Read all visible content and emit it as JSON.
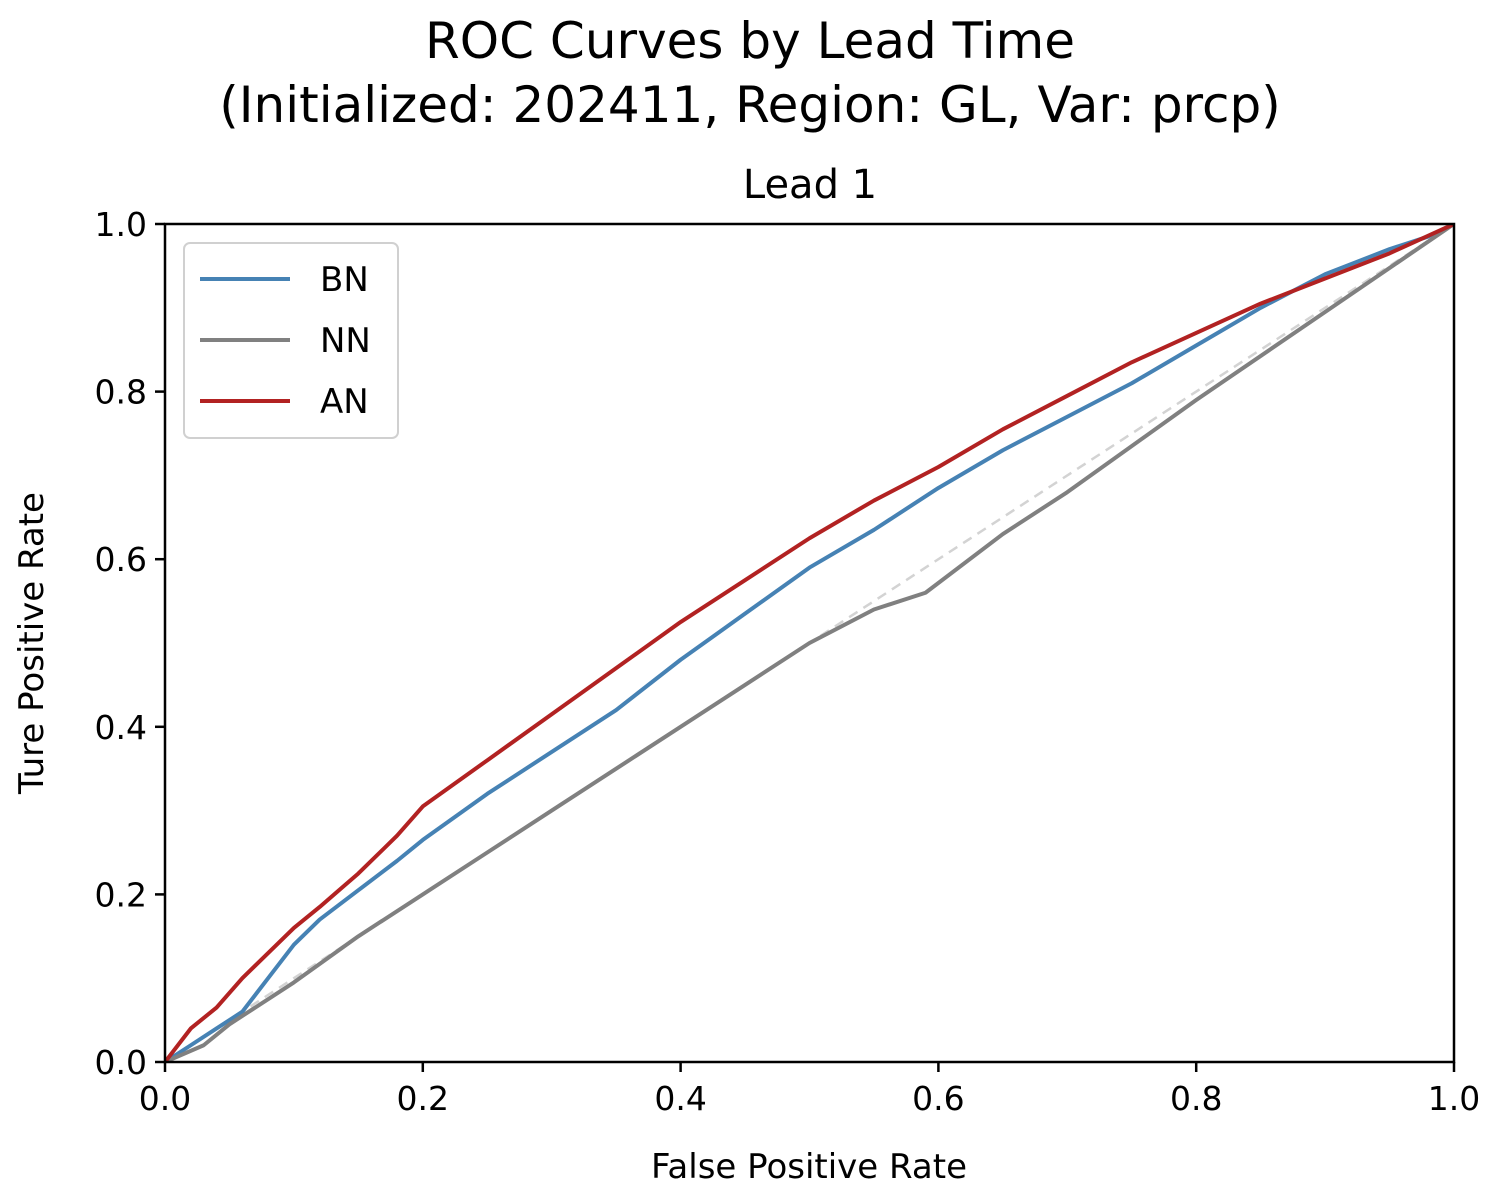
{
  "chart_data": {
    "type": "line",
    "title_lines": [
      "ROC Curves by Lead Time",
      "(Initialized: 202411, Region: GL, Var: prcp)"
    ],
    "subtitle": "Lead 1",
    "xlabel": "False Positive Rate",
    "ylabel": "Ture Positive Rate",
    "xlim": [
      0,
      1
    ],
    "ylim": [
      0,
      1
    ],
    "x_ticks": [
      "0.0",
      "0.2",
      "0.4",
      "0.6",
      "0.8",
      "1.0"
    ],
    "y_ticks": [
      "0.0",
      "0.2",
      "0.4",
      "0.6",
      "0.8",
      "1.0"
    ],
    "grid": false,
    "legend_position": "upper-left",
    "reference_line": {
      "style": "dashed",
      "color": "#d3d3d3",
      "x": [
        0,
        1
      ],
      "y": [
        0,
        1
      ]
    },
    "series": [
      {
        "name": "BN",
        "color": "#4682b4",
        "x": [
          0,
          0.02,
          0.04,
          0.06,
          0.08,
          0.1,
          0.12,
          0.15,
          0.18,
          0.2,
          0.25,
          0.3,
          0.35,
          0.4,
          0.45,
          0.5,
          0.55,
          0.6,
          0.65,
          0.7,
          0.75,
          0.8,
          0.85,
          0.9,
          0.95,
          0.98,
          1.0
        ],
        "y": [
          0,
          0.02,
          0.04,
          0.06,
          0.1,
          0.14,
          0.17,
          0.205,
          0.24,
          0.265,
          0.32,
          0.37,
          0.42,
          0.48,
          0.535,
          0.59,
          0.635,
          0.685,
          0.73,
          0.77,
          0.81,
          0.855,
          0.9,
          0.94,
          0.97,
          0.985,
          1.0
        ]
      },
      {
        "name": "NN",
        "color": "#808080",
        "x": [
          0,
          0.03,
          0.05,
          0.1,
          0.15,
          0.2,
          0.25,
          0.3,
          0.35,
          0.4,
          0.45,
          0.5,
          0.55,
          0.59,
          0.65,
          0.7,
          0.8,
          0.9,
          1.0
        ],
        "y": [
          0,
          0.02,
          0.045,
          0.095,
          0.15,
          0.2,
          0.25,
          0.3,
          0.35,
          0.4,
          0.45,
          0.5,
          0.54,
          0.56,
          0.63,
          0.68,
          0.79,
          0.895,
          1.0
        ]
      },
      {
        "name": "AN",
        "color": "#b22222",
        "x": [
          0,
          0.02,
          0.04,
          0.06,
          0.08,
          0.1,
          0.12,
          0.15,
          0.18,
          0.2,
          0.25,
          0.3,
          0.35,
          0.4,
          0.45,
          0.5,
          0.55,
          0.6,
          0.65,
          0.7,
          0.75,
          0.8,
          0.85,
          0.9,
          0.95,
          1.0
        ],
        "y": [
          0,
          0.04,
          0.065,
          0.1,
          0.13,
          0.16,
          0.185,
          0.225,
          0.27,
          0.305,
          0.36,
          0.415,
          0.47,
          0.525,
          0.575,
          0.625,
          0.67,
          0.71,
          0.755,
          0.795,
          0.835,
          0.87,
          0.905,
          0.935,
          0.965,
          1.0
        ]
      }
    ]
  }
}
